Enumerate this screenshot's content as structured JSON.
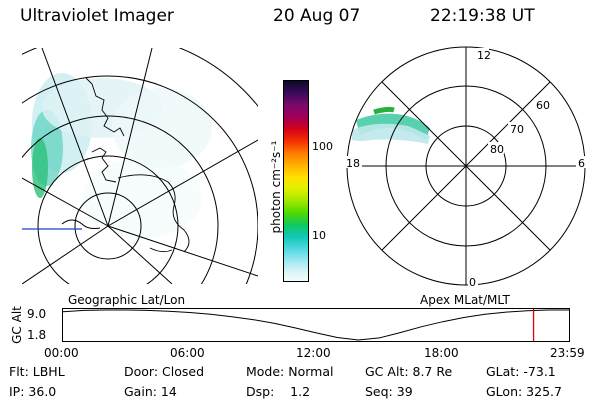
{
  "header": {
    "instrument": "Ultraviolet Imager",
    "date": "20 Aug 07",
    "time": "22:19:38 UT"
  },
  "left_map": {
    "caption": "Geographic Lat/Lon"
  },
  "right_map": {
    "caption": "Apex MLat/MLT",
    "mlt_labels": {
      "top": "12",
      "left": "18",
      "right": "6",
      "bottom": "0"
    },
    "lat_labels": [
      "60",
      "70",
      "80"
    ]
  },
  "colorbar": {
    "unit_label": "photon cm⁻²s⁻¹",
    "ticks": [
      "100",
      "10"
    ],
    "colors": [
      "#0a0a2a",
      "#3a0a5a",
      "#7a0a6a",
      "#a0005a",
      "#d4001a",
      "#f43000",
      "#ff7a00",
      "#ffb000",
      "#ffe000",
      "#e0f000",
      "#a0e800",
      "#50d800",
      "#10c860",
      "#10c8b8",
      "#50d8e0",
      "#a0e8f0",
      "#d8f4f8",
      "#f4fbfc"
    ]
  },
  "orbit_plot": {
    "ylabel": "GC Alt",
    "yticks": [
      "9.0",
      "1.8"
    ],
    "xticks": [
      "00:00",
      "06:00",
      "12:00",
      "18:00",
      "23:59"
    ],
    "altitude_series": {
      "time_hours": [
        0,
        1,
        2,
        3,
        4,
        5,
        6,
        7,
        8,
        9,
        10,
        11,
        12,
        13,
        14,
        15,
        16,
        17,
        18,
        19,
        20,
        21,
        22,
        23,
        23.98
      ],
      "alt_re": [
        8.6,
        8.9,
        9.0,
        9.0,
        8.9,
        8.7,
        8.4,
        8.0,
        7.4,
        6.7,
        5.8,
        4.7,
        3.5,
        2.4,
        1.8,
        2.3,
        3.6,
        5.0,
        6.2,
        7.2,
        8.0,
        8.5,
        8.8,
        9.0,
        9.0
      ]
    },
    "current_time_hours": 22.3,
    "colors": {
      "curve": "#000000",
      "marker": "#e00000"
    }
  },
  "info": {
    "row1": [
      {
        "label": "Flt: LBHL"
      },
      {
        "label": "Door: Closed"
      },
      {
        "label": "Mode: Normal"
      },
      {
        "label": "GC Alt: 8.7 Re"
      },
      {
        "label": "GLat: -73.1"
      }
    ],
    "row2": [
      {
        "label": "IP: 36.0"
      },
      {
        "label": "Gain: 14"
      },
      {
        "label": "Dsp:    1.2"
      },
      {
        "label": "Seq: 39"
      },
      {
        "label": "GLon: 325.7"
      }
    ]
  }
}
